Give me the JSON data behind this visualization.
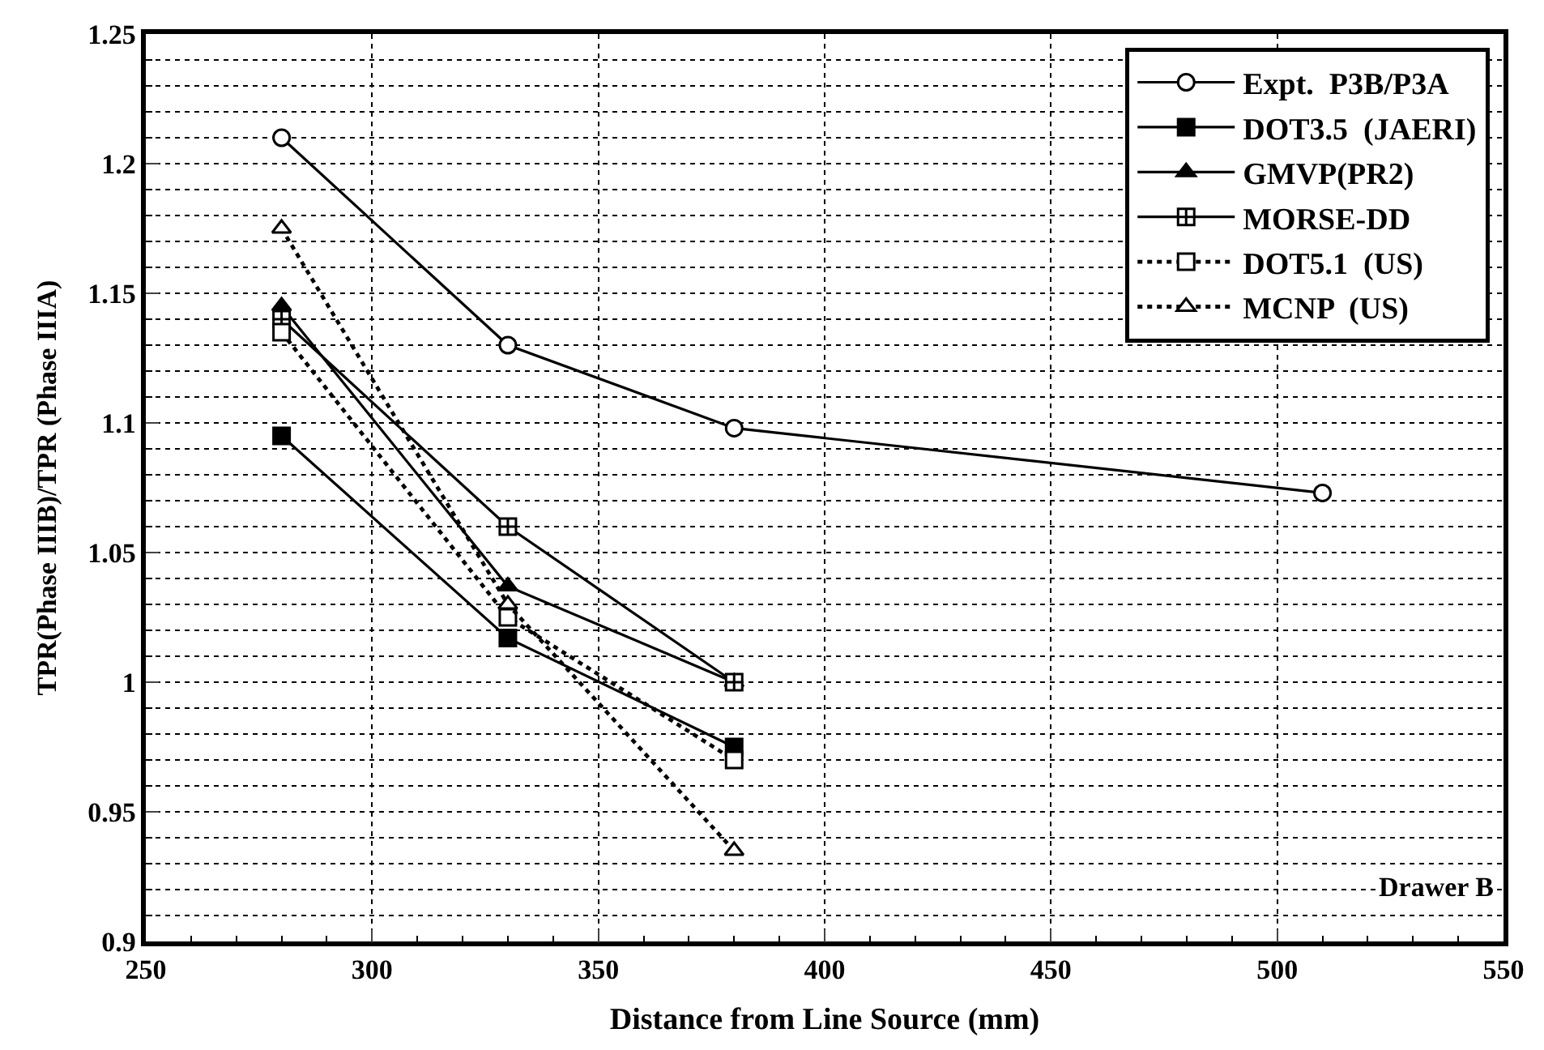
{
  "chart_data": {
    "type": "line",
    "xlabel": "Distance from Line Source (mm)",
    "ylabel": "TPR(Phase IIIB)/TPR (Phase IIIA)",
    "xlim": [
      250,
      550
    ],
    "xticks": [
      250,
      300,
      350,
      400,
      450,
      500,
      550
    ],
    "ylim": [
      0.9,
      1.25
    ],
    "yticks": [
      0.9,
      0.95,
      1,
      1.05,
      1.1,
      1.15,
      1.2,
      1.25
    ],
    "grid": true,
    "legend": "top right",
    "annotations": [
      "Drawer B"
    ],
    "series": [
      {
        "name": "Expt.  P3B/P3A",
        "color": "#000000",
        "marker": "circle-open",
        "line_style": "solid",
        "x": [
          280,
          330,
          380,
          510
        ],
        "values": [
          1.21,
          1.13,
          1.098,
          1.073
        ]
      },
      {
        "name": "DOT3.5  (JAERI)",
        "color": "#000000",
        "marker": "square",
        "line_style": "solid",
        "x": [
          280,
          330,
          380
        ],
        "values": [
          1.095,
          1.017,
          0.975
        ]
      },
      {
        "name": "GMVP(PR2)",
        "color": "#000000",
        "marker": "triangle",
        "line_style": "solid",
        "x": [
          280,
          330,
          380
        ],
        "values": [
          1.145,
          1.037,
          1.0
        ]
      },
      {
        "name": "MORSE-DD",
        "color": "#000000",
        "marker": "cross-open",
        "line_style": "solid",
        "x": [
          280,
          330,
          380
        ],
        "values": [
          1.14,
          1.06,
          1.0
        ]
      },
      {
        "name": "DOT5.1  (US)",
        "color": "#000000",
        "marker": "square-open",
        "line_style": "dotted",
        "x": [
          280,
          330,
          380
        ],
        "values": [
          1.135,
          1.025,
          0.97
        ]
      },
      {
        "name": "MCNP  (US)",
        "color": "#000000",
        "marker": "triangle-open",
        "line_style": "dotted",
        "x": [
          280,
          330,
          380
        ],
        "values": [
          1.175,
          1.03,
          0.935
        ]
      }
    ]
  }
}
